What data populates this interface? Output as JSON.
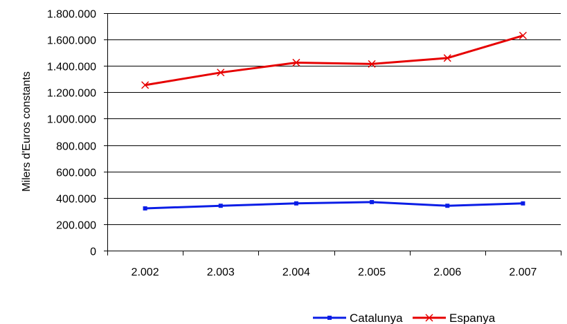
{
  "chart_data": {
    "type": "line",
    "title": "",
    "xlabel": "",
    "ylabel": "Milers d'Euros constants",
    "categories": [
      "2.002",
      "2.003",
      "2.004",
      "2.005",
      "2.006",
      "2.007"
    ],
    "ylim": [
      0,
      1800000
    ],
    "yticks": [
      0,
      200000,
      400000,
      600000,
      800000,
      1000000,
      1200000,
      1400000,
      1600000,
      1800000
    ],
    "ytick_labels": [
      "0",
      "200.000",
      "400.000",
      "600.000",
      "800.000",
      "1.000.000",
      "1.200.000",
      "1.400.000",
      "1.600.000",
      "1.800.000"
    ],
    "grid": "horizontal",
    "legend_position": "bottom-right",
    "series": [
      {
        "name": "Catalunya",
        "color": "#0a1de6",
        "marker": "square",
        "values": [
          320000,
          340000,
          358000,
          368000,
          340000,
          358000
        ]
      },
      {
        "name": "Espanya",
        "color": "#e60000",
        "marker": "x",
        "values": [
          1255000,
          1350000,
          1425000,
          1415000,
          1460000,
          1630000
        ]
      }
    ]
  }
}
